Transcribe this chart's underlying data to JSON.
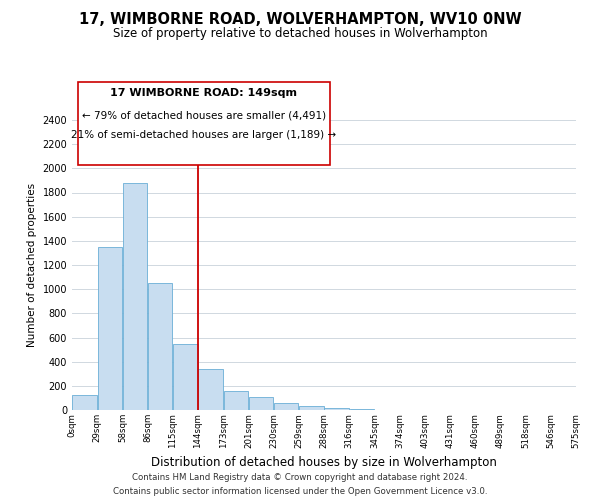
{
  "title": "17, WIMBORNE ROAD, WOLVERHAMPTON, WV10 0NW",
  "subtitle": "Size of property relative to detached houses in Wolverhampton",
  "xlabel": "Distribution of detached houses by size in Wolverhampton",
  "ylabel": "Number of detached properties",
  "footer_line1": "Contains HM Land Registry data © Crown copyright and database right 2024.",
  "footer_line2": "Contains public sector information licensed under the Open Government Licence v3.0.",
  "annotation_line1": "17 WIMBORNE ROAD: 149sqm",
  "annotation_line2": "← 79% of detached houses are smaller (4,491)",
  "annotation_line3": "21% of semi-detached houses are larger (1,189) →",
  "bar_color": "#c8ddf0",
  "bar_edge_color": "#6aaed6",
  "vline_color": "#cc0000",
  "vline_x": 5,
  "bin_labels": [
    "0sqm",
    "29sqm",
    "58sqm",
    "86sqm",
    "115sqm",
    "144sqm",
    "173sqm",
    "201sqm",
    "230sqm",
    "259sqm",
    "288sqm",
    "316sqm",
    "345sqm",
    "374sqm",
    "403sqm",
    "431sqm",
    "460sqm",
    "489sqm",
    "518sqm",
    "546sqm",
    "575sqm"
  ],
  "counts": [
    125,
    1350,
    1880,
    1050,
    550,
    340,
    160,
    105,
    60,
    30,
    15,
    8,
    4,
    2,
    1,
    1,
    0,
    1,
    0,
    1
  ],
  "ylim": [
    0,
    2400
  ],
  "yticks": [
    0,
    200,
    400,
    600,
    800,
    1000,
    1200,
    1400,
    1600,
    1800,
    2000,
    2200,
    2400
  ],
  "background_color": "#ffffff",
  "grid_color": "#d0d8e0"
}
